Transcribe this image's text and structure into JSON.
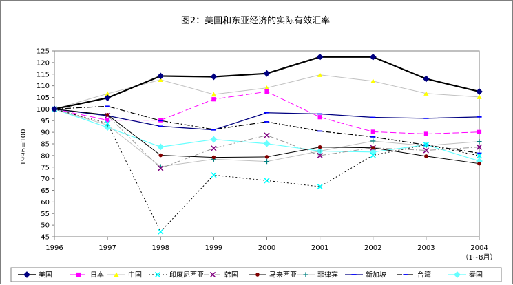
{
  "chart_data": {
    "type": "line",
    "title": "图2：美国和东亚经济的实际有效汇率",
    "ylabel": "1996=100",
    "xlabel": "",
    "x": [
      "1996",
      "1997",
      "1998",
      "1999",
      "2000",
      "2001",
      "2002",
      "2003",
      "2004"
    ],
    "x_note": "（1~8月）",
    "ylim": [
      45,
      125
    ],
    "ystep": 5,
    "grid": false,
    "legend_position": "bottom",
    "series": [
      {
        "name": "美国",
        "color": "#000000",
        "dash": "solid",
        "width": 2.2,
        "marker": "diamond",
        "values": [
          100,
          104.8,
          114.2,
          113.9,
          115.3,
          122.4,
          122.4,
          113,
          107.5
        ]
      },
      {
        "name": "日本",
        "color": "#ff00ff",
        "dash": "longdash",
        "width": 1,
        "marker": "square",
        "values": [
          100,
          95.2,
          95.2,
          104.2,
          107.5,
          96.5,
          90.2,
          89.3,
          90.1
        ]
      },
      {
        "name": "中国",
        "color": "#c0c0c0",
        "dash": "solid",
        "width": 1,
        "marker": "triangle",
        "values": [
          100,
          106.6,
          112.6,
          106.3,
          109.1,
          114.7,
          112,
          106.7,
          105.2
        ]
      },
      {
        "name": "印度尼西亚",
        "color": "#000000",
        "dash": "dot",
        "width": 1,
        "marker": "xmark",
        "values": [
          100,
          93.8,
          47.2,
          71.6,
          69.2,
          66.6,
          80.1,
          84.6,
          79.9
        ]
      },
      {
        "name": "韩国",
        "color": "#999999",
        "dash": "dashdot",
        "width": 1,
        "marker": "xmark",
        "values": [
          100,
          97.2,
          74.5,
          83.1,
          88.7,
          80,
          83.3,
          82.2,
          83.6
        ]
      },
      {
        "name": "马来西亚",
        "color": "#000000",
        "dash": "solid",
        "width": 1,
        "marker": "circle",
        "values": [
          100,
          97.5,
          80.1,
          79.2,
          79.4,
          83.6,
          83.3,
          79.7,
          76.5
        ]
      },
      {
        "name": "菲律宾",
        "color": "#c0c0c0",
        "dash": "solid",
        "width": 1,
        "marker": "plus",
        "values": [
          100,
          93.1,
          75.2,
          78.4,
          77.4,
          81.9,
          86.2,
          84.2,
          86
        ]
      },
      {
        "name": "新加坡",
        "color": "#000080",
        "dash": "solid",
        "width": 1.3,
        "marker": "dash",
        "values": [
          100,
          97.1,
          92.6,
          91,
          98.4,
          97.9,
          96.4,
          96,
          96.6
        ]
      },
      {
        "name": "台湾",
        "color": "#000000",
        "dash": "dashdot",
        "width": 1.2,
        "marker": "dash",
        "values": [
          100,
          101.2,
          95,
          91.2,
          94.5,
          90.5,
          88,
          84.5,
          81
        ]
      },
      {
        "name": "泰国",
        "color": "#66ffff",
        "dash": "solid",
        "width": 1.2,
        "marker": "diamond",
        "values": [
          100,
          92.1,
          83.7,
          86.9,
          85.1,
          81.9,
          81.5,
          84.6,
          77.6
        ]
      }
    ]
  }
}
